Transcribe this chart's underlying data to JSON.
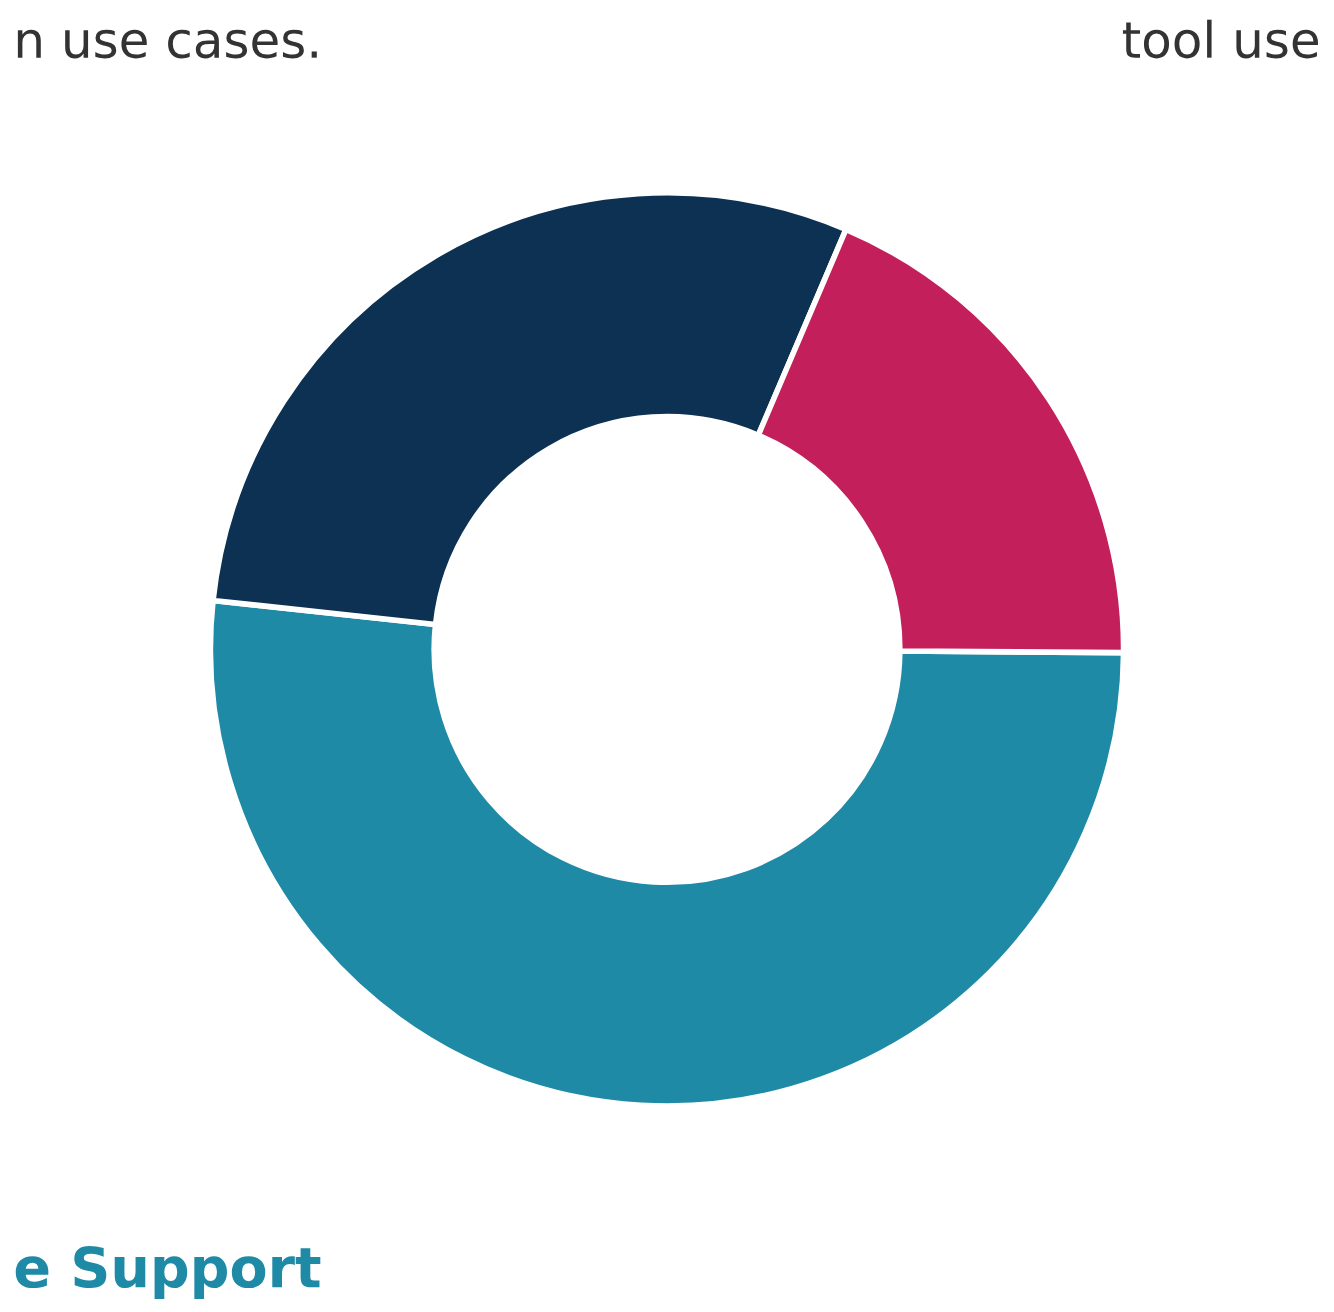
{
  "chart_data": {
    "type": "donut",
    "categories": [
      "e Support",
      null,
      null
    ],
    "values": [
      51.6,
      29.7,
      18.7
    ],
    "colors": [
      "#1f8aa6",
      "#0d3152",
      "#c21f5b"
    ],
    "annotations": [
      "n use cases.",
      "tool use"
    ]
  }
}
